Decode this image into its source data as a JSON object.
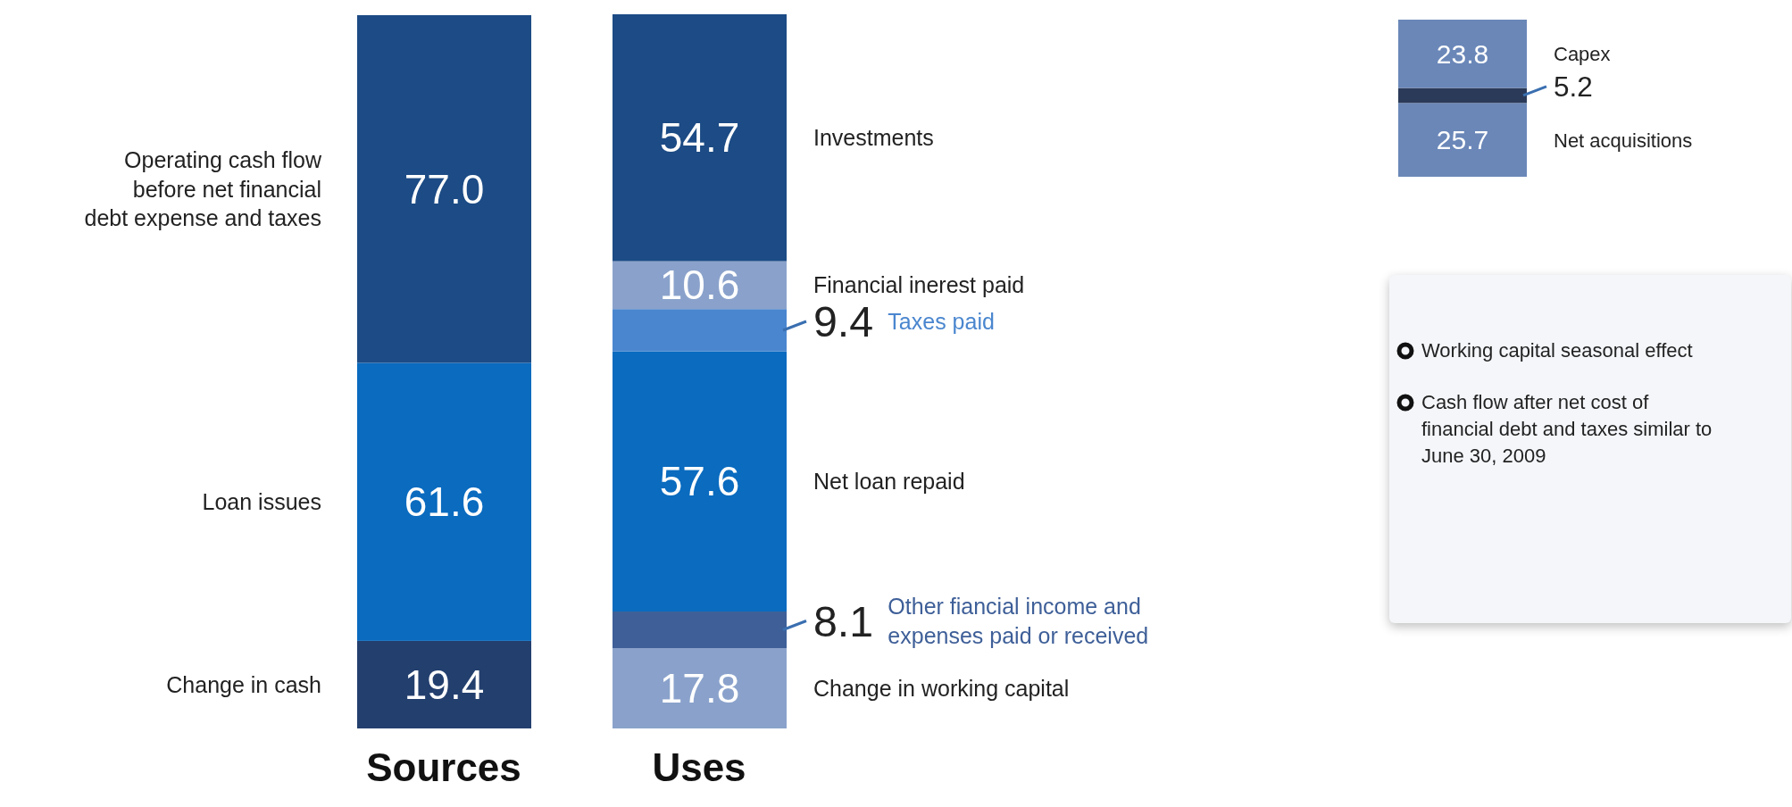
{
  "chart_data": [
    {
      "type": "bar",
      "stacked": true,
      "categories": [
        "Sources",
        "Uses"
      ],
      "series": [
        {
          "name": "Change in cash",
          "color": "#233f6e",
          "values": [
            19.4,
            null
          ],
          "value_labels": [
            "19.4",
            null
          ]
        },
        {
          "name": "Loan issues",
          "color": "#0a6bbf",
          "values": [
            61.6,
            null
          ],
          "value_labels": [
            "61.6",
            null
          ]
        },
        {
          "name": "Operating cash flow before net financial debt expense and taxes",
          "color": "#1c4b85",
          "values": [
            77.0,
            null
          ],
          "value_labels": [
            "77.0",
            null
          ]
        },
        {
          "name": "Change in working capital",
          "color": "#8aa2cb",
          "values": [
            null,
            17.8
          ],
          "value_labels": [
            null,
            "17.8"
          ]
        },
        {
          "name": "Other fiancial income and expenses paid or received",
          "color": "#3e5f98",
          "values": [
            null,
            8.1
          ],
          "value_labels": [
            null,
            "8.1"
          ]
        },
        {
          "name": "Net loan repaid",
          "color": "#0a6bbf",
          "values": [
            null,
            57.6
          ],
          "value_labels": [
            null,
            "57.6"
          ]
        },
        {
          "name": "Taxes paid",
          "color": "#4a86cf",
          "values": [
            null,
            9.4
          ],
          "value_labels": [
            null,
            "9.4"
          ]
        },
        {
          "name": "Financial inerest paid",
          "color": "#8aa2cb",
          "values": [
            null,
            10.6
          ],
          "value_labels": [
            null,
            "10.6"
          ]
        },
        {
          "name": "Investments",
          "color": "#1c4b85",
          "values": [
            null,
            54.7
          ],
          "value_labels": [
            null,
            "54.7"
          ]
        }
      ]
    },
    {
      "type": "bar",
      "stacked": true,
      "categories": [
        null
      ],
      "series": [
        {
          "name": "Net acquisitions",
          "color": "#6a87b8",
          "values": [
            25.7
          ],
          "value_labels": [
            "25.7"
          ]
        },
        {
          "color": "#2b3a58",
          "values": [
            5.2
          ],
          "value_labels": [
            "5.2"
          ]
        },
        {
          "name": "Capex",
          "color": "#6a87b8",
          "values": [
            23.8
          ],
          "value_labels": [
            "23.8"
          ]
        }
      ]
    },
    {
      "type": "other",
      "annotations": [
        "Working capital seasonal effect",
        "Cash flow after net cost of financial debt and taxes similar to June 30, 2009"
      ]
    }
  ]
}
